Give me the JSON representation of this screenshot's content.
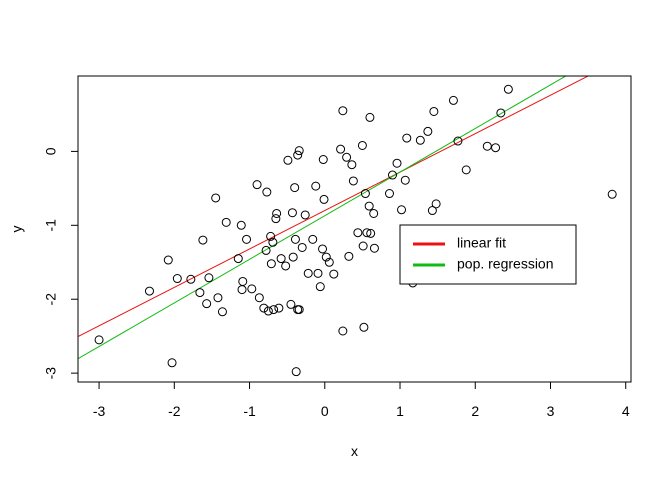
{
  "chart_data": {
    "type": "scatter",
    "title": "",
    "xlabel": "x",
    "ylabel": "y",
    "xlim": [
      -3.28,
      4.07
    ],
    "ylim": [
      -3.12,
      1.02
    ],
    "xticks": [
      -3,
      -2,
      -1,
      0,
      1,
      2,
      3,
      4
    ],
    "yticks": [
      -3,
      -2,
      -1,
      0
    ],
    "xtick_labels": [
      "-3",
      "-2",
      "-1",
      "0",
      "1",
      "2",
      "3",
      "4"
    ],
    "ytick_labels": [
      "-3",
      "-2",
      "-1",
      "0"
    ],
    "grid": false,
    "legend_position": "right",
    "series": [
      {
        "kind": "points",
        "marker": "open-circle",
        "color": "#000000",
        "points": [
          [
            -3.0,
            -2.55
          ],
          [
            -2.33,
            -1.89
          ],
          [
            -2.08,
            -1.47
          ],
          [
            -2.03,
            -2.86
          ],
          [
            -1.96,
            -1.72
          ],
          [
            -1.78,
            -1.73
          ],
          [
            -1.66,
            -1.91
          ],
          [
            -1.62,
            -1.2
          ],
          [
            -1.57,
            -2.06
          ],
          [
            -1.54,
            -1.71
          ],
          [
            -1.45,
            -0.63
          ],
          [
            -1.42,
            -1.98
          ],
          [
            -1.36,
            -2.17
          ],
          [
            -1.31,
            -0.96
          ],
          [
            -1.15,
            -1.45
          ],
          [
            -1.11,
            -1.0
          ],
          [
            -1.1,
            -1.87
          ],
          [
            -1.09,
            -1.76
          ],
          [
            -1.04,
            -1.19
          ],
          [
            -0.97,
            -1.86
          ],
          [
            -0.9,
            -0.45
          ],
          [
            -0.87,
            -1.98
          ],
          [
            -0.81,
            -2.12
          ],
          [
            -0.78,
            -1.34
          ],
          [
            -0.77,
            -0.55
          ],
          [
            -0.75,
            -2.16
          ],
          [
            -0.72,
            -1.15
          ],
          [
            -0.71,
            -1.52
          ],
          [
            -0.69,
            -1.23
          ],
          [
            -0.68,
            -2.14
          ],
          [
            -0.65,
            -0.91
          ],
          [
            -0.64,
            -0.84
          ],
          [
            -0.61,
            -2.12
          ],
          [
            -0.58,
            -1.45
          ],
          [
            -0.52,
            -1.55
          ],
          [
            -0.49,
            -0.12
          ],
          [
            -0.45,
            -2.07
          ],
          [
            -0.43,
            -0.83
          ],
          [
            -0.42,
            -1.43
          ],
          [
            -0.4,
            -0.49
          ],
          [
            -0.39,
            -1.19
          ],
          [
            -0.38,
            -2.98
          ],
          [
            -0.36,
            -0.05
          ],
          [
            -0.36,
            -2.14
          ],
          [
            -0.34,
            -2.14
          ],
          [
            -0.34,
            0.01
          ],
          [
            -0.3,
            -1.3
          ],
          [
            -0.26,
            -0.86
          ],
          [
            -0.22,
            -1.65
          ],
          [
            -0.16,
            -1.19
          ],
          [
            -0.12,
            -0.47
          ],
          [
            -0.09,
            -1.65
          ],
          [
            -0.06,
            -1.83
          ],
          [
            -0.03,
            -1.32
          ],
          [
            -0.02,
            -0.11
          ],
          [
            -0.01,
            -0.65
          ],
          [
            0.02,
            -1.43
          ],
          [
            0.06,
            -1.5
          ],
          [
            0.12,
            -1.66
          ],
          [
            0.21,
            0.03
          ],
          [
            0.24,
            -2.43
          ],
          [
            0.24,
            0.55
          ],
          [
            0.29,
            -0.08
          ],
          [
            0.32,
            -1.42
          ],
          [
            0.36,
            -0.18
          ],
          [
            0.38,
            -0.4
          ],
          [
            0.44,
            -1.1
          ],
          [
            0.5,
            0.08
          ],
          [
            0.51,
            -1.28
          ],
          [
            0.52,
            -2.38
          ],
          [
            0.54,
            -0.57
          ],
          [
            0.56,
            -1.1
          ],
          [
            0.59,
            -0.74
          ],
          [
            0.6,
            0.46
          ],
          [
            0.61,
            -1.11
          ],
          [
            0.65,
            -0.84
          ],
          [
            0.66,
            -1.31
          ],
          [
            0.86,
            -0.57
          ],
          [
            0.9,
            -0.32
          ],
          [
            0.96,
            -0.16
          ],
          [
            1.02,
            -0.79
          ],
          [
            1.07,
            -0.39
          ],
          [
            1.09,
            0.18
          ],
          [
            1.17,
            -1.78
          ],
          [
            1.27,
            0.15
          ],
          [
            1.37,
            0.27
          ],
          [
            1.43,
            -0.8
          ],
          [
            1.45,
            0.54
          ],
          [
            1.48,
            -0.71
          ],
          [
            1.71,
            0.69
          ],
          [
            1.77,
            0.14
          ],
          [
            1.88,
            -0.25
          ],
          [
            2.16,
            0.07
          ],
          [
            2.27,
            0.05
          ],
          [
            2.34,
            0.52
          ],
          [
            2.44,
            0.84
          ],
          [
            3.82,
            -0.58
          ]
        ]
      },
      {
        "name": "linear fit",
        "kind": "line",
        "color": "#ee1111",
        "intercept": -0.8,
        "slope": 0.52
      },
      {
        "name": "pop. regression",
        "kind": "line",
        "color": "#11bb11",
        "intercept": -0.87,
        "slope": 0.59
      }
    ]
  }
}
